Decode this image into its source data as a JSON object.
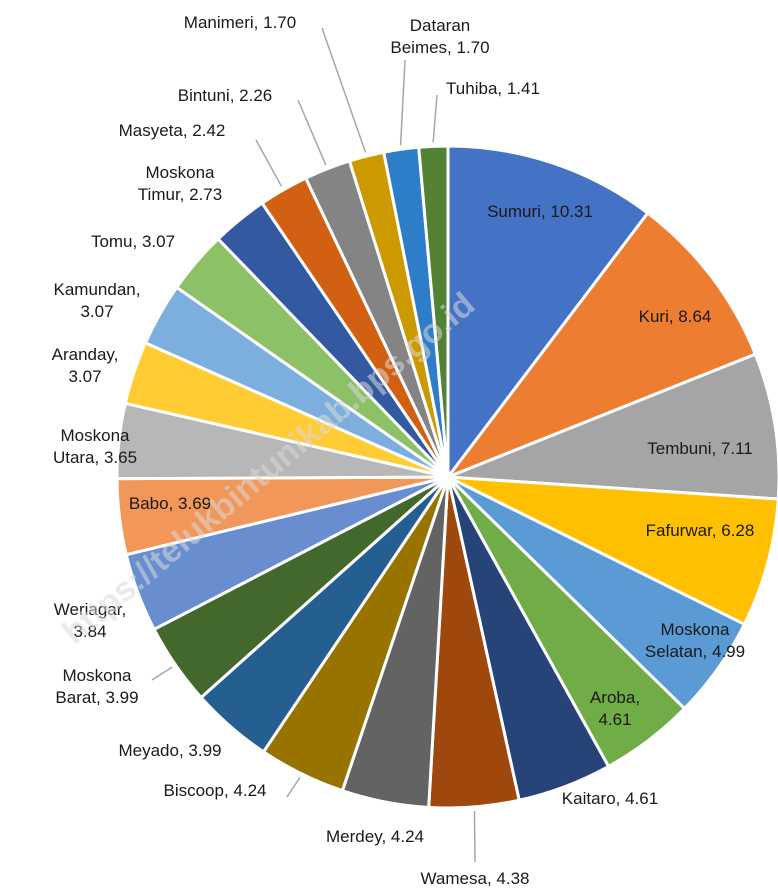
{
  "chart_data": {
    "type": "pie",
    "categories": [
      "Sumuri",
      "Kuri",
      "Tembuni",
      "Fafurwar",
      "Moskona Selatan",
      "Aroba",
      "Kaitaro",
      "Wamesa",
      "Merdey",
      "Biscoop",
      "Meyado",
      "Moskona Barat",
      "Weriagar",
      "Babo",
      "Moskona Utara",
      "Aranday",
      "Kamundan",
      "Tomu",
      "Moskona Timur",
      "Masyeta",
      "Bintuni",
      "Manimeri",
      "Dataran Beimes",
      "Tuhiba"
    ],
    "values": [
      10.31,
      8.64,
      7.11,
      6.28,
      4.99,
      4.61,
      4.61,
      4.38,
      4.24,
      4.24,
      3.99,
      3.99,
      3.84,
      3.69,
      3.65,
      3.07,
      3.07,
      3.07,
      2.73,
      2.42,
      2.26,
      1.7,
      1.7,
      1.41
    ],
    "value_labels": [
      "Sumuri, 10.31",
      "Kuri, 8.64",
      "Tembuni, 7.11",
      "Fafurwar, 6.28",
      "Moskona\nSelatan, 4.99",
      "Aroba,\n4.61",
      "Kaitaro, 4.61",
      "Wamesa, 4.38",
      "Merdey, 4.24",
      "Biscoop, 4.24",
      "Meyado, 3.99",
      "Moskona\nBarat, 3.99",
      "Weriagar,\n3.84",
      "Babo, 3.69",
      "Moskona\nUtara, 3.65",
      "Aranday,\n3.07",
      "Kamundan,\n3.07",
      "Tomu, 3.07",
      "Moskona\nTimur, 2.73",
      "Masyeta, 2.42",
      "Bintuni, 2.26",
      "Manimeri, 1.70",
      "Dataran\nBeimes, 1.70",
      "Tuhiba, 1.41"
    ],
    "colors": [
      "#4472c4",
      "#ed7d31",
      "#a5a5a5",
      "#ffc000",
      "#5b9bd5",
      "#70ad47",
      "#264478",
      "#9e480e",
      "#636363",
      "#997300",
      "#255e91",
      "#43682b",
      "#698ed0",
      "#f1975a",
      "#b7b7b7",
      "#ffcd33",
      "#7cafdd",
      "#8cc168",
      "#335aa1",
      "#d26012",
      "#848484",
      "#cc9a00",
      "#2e7dc8",
      "#548235"
    ],
    "watermark": "https://telukbintunikab.bps.go.id"
  }
}
